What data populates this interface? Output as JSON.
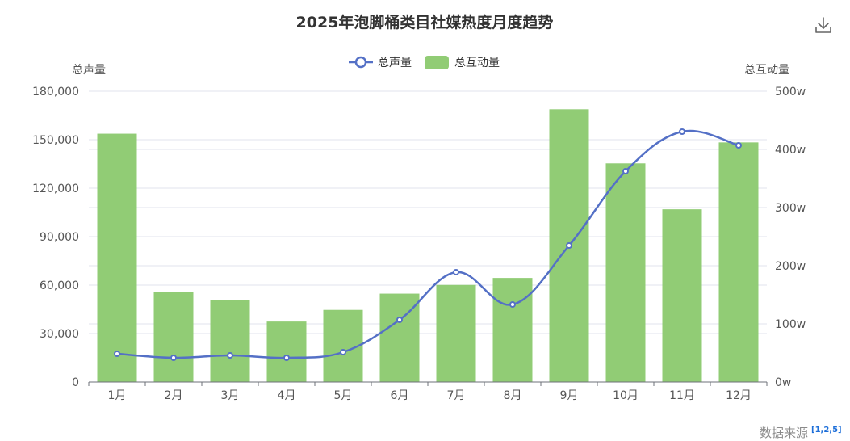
{
  "chart_data": {
    "type": "bar",
    "title": "2025年泡脚桶类目社媒热度月度趋势",
    "categories": [
      "1月",
      "2月",
      "3月",
      "4月",
      "5月",
      "6月",
      "7月",
      "8月",
      "9月",
      "10月",
      "11月",
      "12月"
    ],
    "series": [
      {
        "name": "总声量",
        "type": "line",
        "axis": "left",
        "smooth": true,
        "color": "#5470c6",
        "values": [
          17500,
          15000,
          16500,
          15000,
          18500,
          38500,
          68000,
          48000,
          84500,
          130500,
          155000,
          146500
        ]
      },
      {
        "name": "总互动量",
        "type": "bar",
        "axis": "right",
        "color": "#91cc75",
        "values": [
          4270000,
          1550000,
          1410000,
          1040000,
          1240000,
          1520000,
          1670000,
          1790000,
          4690000,
          3760000,
          2970000,
          4120000
        ]
      }
    ],
    "y_left": {
      "name": "总声量",
      "min": 0,
      "max": 180000,
      "ticks": [
        "0",
        "30,000",
        "60,000",
        "90,000",
        "120,000",
        "150,000",
        "180,000"
      ]
    },
    "y_right": {
      "name": "总互动量",
      "min": 0,
      "max": 5000000,
      "ticks": [
        "0w",
        "100w",
        "200w",
        "300w",
        "400w",
        "500w"
      ]
    },
    "legend_position": "top-center",
    "grid": true
  },
  "toolbar": {
    "download_icon": "download-icon"
  },
  "footer": {
    "source_label": "数据来源",
    "citation": "[1,2,5]"
  }
}
